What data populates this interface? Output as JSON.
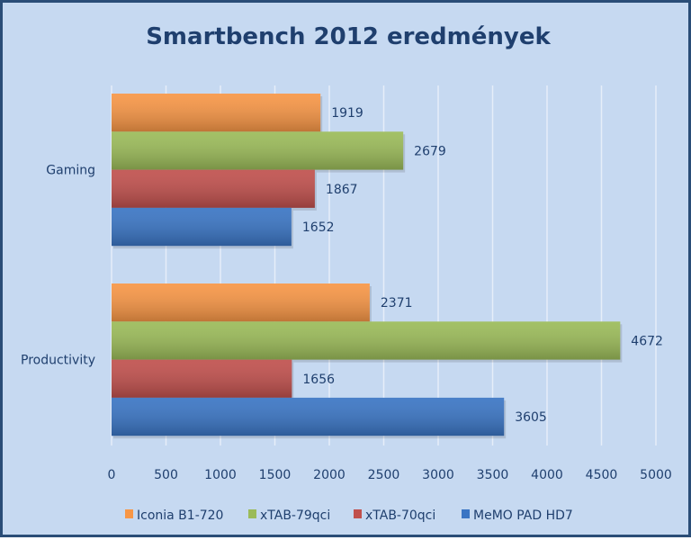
{
  "chart_data": {
    "type": "bar",
    "orientation": "horizontal",
    "title": "Smartbench 2012 eredmények",
    "categories": [
      "Gaming",
      "Productivity"
    ],
    "series": [
      {
        "name": "Iconia B1-720",
        "color": "#f79646",
        "values": [
          1919,
          2371
        ]
      },
      {
        "name": "xTAB-79qci",
        "color": "#9bbb59",
        "values": [
          2679,
          4672
        ]
      },
      {
        "name": "xTAB-70qci",
        "color": "#c0504d",
        "values": [
          1867,
          1656
        ]
      },
      {
        "name": "MeMO PAD HD7",
        "color": "#3a75c4",
        "values": [
          1652,
          3605
        ]
      }
    ],
    "xlim": [
      0,
      5000
    ],
    "xticks": [
      "0",
      "500",
      "1000",
      "1500",
      "2000",
      "2500",
      "3000",
      "3500",
      "4000",
      "4500",
      "5000"
    ],
    "xlabel": "",
    "ylabel": "",
    "grid": true,
    "legend_position": "bottom"
  }
}
